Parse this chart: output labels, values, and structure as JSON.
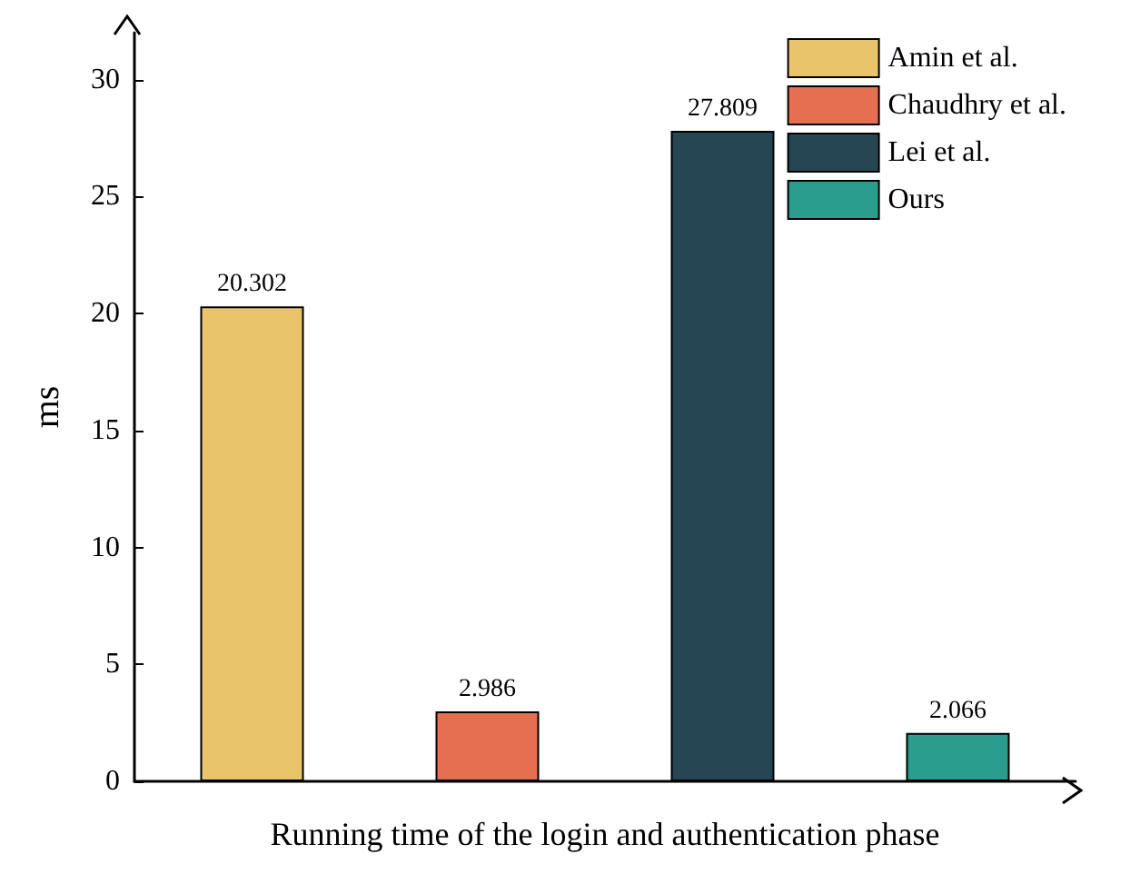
{
  "chart_data": {
    "type": "bar",
    "xlabel": "Running time of the login and authentication phase",
    "ylabel": "ms",
    "categories": [
      null,
      null,
      null,
      null
    ],
    "series": [
      {
        "name": "Amin et al.",
        "color": "#e9c46a",
        "values": [
          20.302,
          null,
          null,
          null
        ]
      },
      {
        "name": "Chaudhry et al.",
        "color": "#e76f51",
        "values": [
          null,
          2.986,
          null,
          null
        ]
      },
      {
        "name": "Lei et al.",
        "color": "#264653",
        "values": [
          null,
          null,
          27.809,
          null
        ]
      },
      {
        "name": "Ours",
        "color": "#2a9d8f",
        "values": [
          null,
          null,
          null,
          2.066
        ]
      }
    ],
    "ylim": [
      0,
      32
    ],
    "yticks": [
      0,
      5,
      10,
      15,
      20,
      25,
      30
    ],
    "data_labels": true,
    "legend": "top right",
    "grid": false
  }
}
